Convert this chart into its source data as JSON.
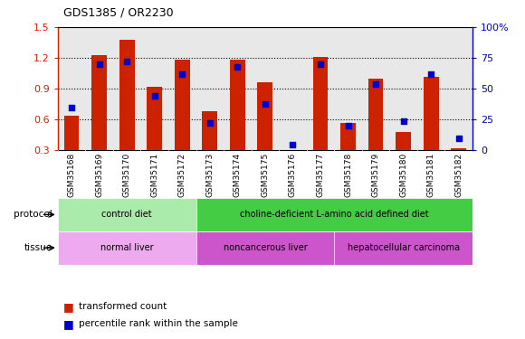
{
  "title": "GDS1385 / OR2230",
  "samples": [
    "GSM35168",
    "GSM35169",
    "GSM35170",
    "GSM35171",
    "GSM35172",
    "GSM35173",
    "GSM35174",
    "GSM35175",
    "GSM35176",
    "GSM35177",
    "GSM35178",
    "GSM35179",
    "GSM35180",
    "GSM35181",
    "GSM35182"
  ],
  "red_values": [
    0.64,
    1.23,
    1.38,
    0.92,
    1.18,
    0.68,
    1.18,
    0.96,
    0.3,
    1.21,
    0.57,
    1.0,
    0.48,
    1.02,
    0.32
  ],
  "blue_values": [
    35,
    70,
    72,
    44,
    62,
    22,
    68,
    38,
    5,
    70,
    20,
    54,
    24,
    62,
    10
  ],
  "ylim_left": [
    0.3,
    1.5
  ],
  "ylim_right": [
    0,
    100
  ],
  "yticks_left": [
    0.3,
    0.6,
    0.9,
    1.2,
    1.5
  ],
  "yticks_right": [
    0,
    25,
    50,
    75,
    100
  ],
  "protocol_groups": [
    {
      "label": "control diet",
      "start": 0,
      "end": 4,
      "color": "#aaeaaa"
    },
    {
      "label": "choline-deficient L-amino acid defined diet",
      "start": 5,
      "end": 14,
      "color": "#44cc44"
    }
  ],
  "tissue_groups": [
    {
      "label": "normal liver",
      "start": 0,
      "end": 4,
      "color": "#eeaaee"
    },
    {
      "label": "noncancerous liver",
      "start": 5,
      "end": 9,
      "color": "#cc55cc"
    },
    {
      "label": "hepatocellular carcinoma",
      "start": 10,
      "end": 14,
      "color": "#cc55cc"
    }
  ],
  "bar_color": "#cc2200",
  "dot_color": "#0000cc",
  "left_axis_color": "#cc2200",
  "right_axis_color": "#0000cc",
  "plot_bg": "#e8e8e8",
  "label_bg": "#c8c8c8",
  "legend_items": [
    {
      "label": "transformed count",
      "color": "#cc2200"
    },
    {
      "label": "percentile rank within the sample",
      "color": "#0000cc"
    }
  ]
}
